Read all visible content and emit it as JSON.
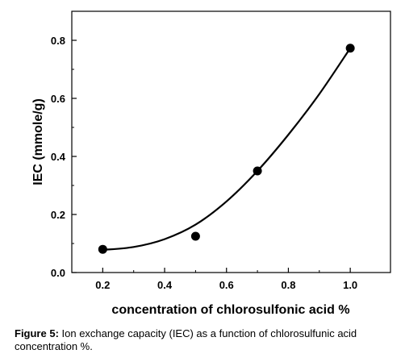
{
  "chart_data": {
    "type": "scatter",
    "xlabel": "concentration of chlorosulfonic acid %",
    "ylabel": "IEC (mmole/g)",
    "xlim": [
      0.1,
      1.13
    ],
    "ylim": [
      0.0,
      0.9
    ],
    "xticks": [
      0.2,
      0.4,
      0.6,
      0.8,
      1.0
    ],
    "xtick_labels": [
      "0.2",
      "0.4",
      "0.6",
      "0.8",
      "1.0"
    ],
    "yticks": [
      0.0,
      0.2,
      0.4,
      0.6,
      0.8
    ],
    "ytick_labels": [
      "0.0",
      "0.2",
      "0.4",
      "0.6",
      "0.8"
    ],
    "grid": false,
    "points": [
      {
        "x": 0.2,
        "y": 0.08
      },
      {
        "x": 0.5,
        "y": 0.125
      },
      {
        "x": 0.7,
        "y": 0.35
      },
      {
        "x": 1.0,
        "y": 0.773
      }
    ],
    "fit_curve": [
      {
        "x": 0.2,
        "y": 0.078
      },
      {
        "x": 0.3,
        "y": 0.088
      },
      {
        "x": 0.4,
        "y": 0.115
      },
      {
        "x": 0.5,
        "y": 0.165
      },
      {
        "x": 0.6,
        "y": 0.245
      },
      {
        "x": 0.7,
        "y": 0.35
      },
      {
        "x": 0.8,
        "y": 0.475
      },
      {
        "x": 0.9,
        "y": 0.615
      },
      {
        "x": 1.0,
        "y": 0.773
      }
    ]
  },
  "caption": {
    "label": "Figure 5:",
    "text": " Ion exchange capacity (IEC) as a function of chlorosulfunic acid concentration %."
  }
}
